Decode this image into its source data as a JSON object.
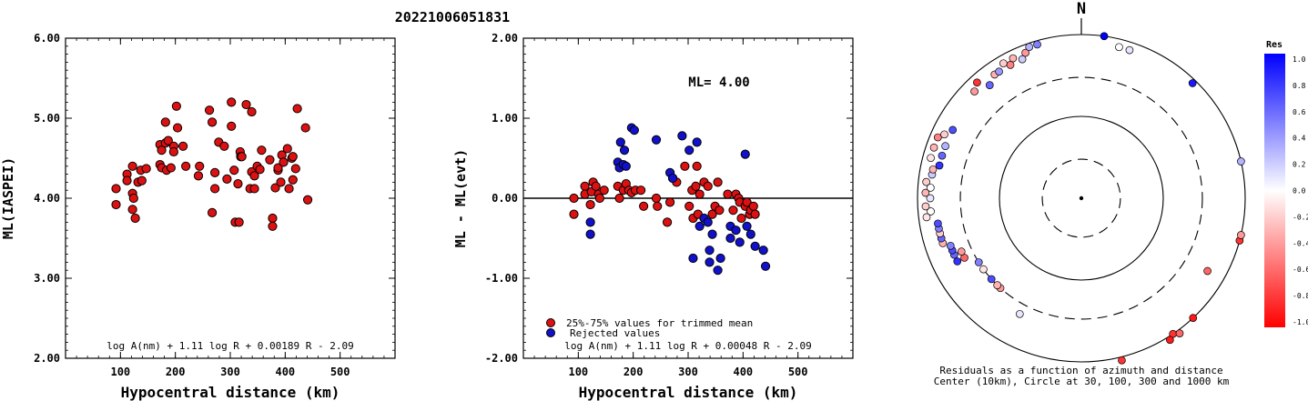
{
  "title": "20221006051831",
  "chart_data": [
    {
      "type": "scatter",
      "ylabel": "ML(IASPEI)",
      "xlabel": "Hypocentral distance (km)",
      "xlim": [
        0,
        600
      ],
      "ylim": [
        2.0,
        6.0
      ],
      "xticks": [
        "100",
        "200",
        "300",
        "400",
        "500"
      ],
      "yticks": [
        "2.00",
        "3.00",
        "4.00",
        "5.00",
        "6.00"
      ],
      "formula": "log A(nm) + 1.11 log R + 0.00189 R - 2.09",
      "point_color": "#dd1111",
      "x": [
        92,
        92,
        112,
        112,
        122,
        122,
        122,
        124,
        127,
        132,
        137,
        139,
        147,
        172,
        172,
        175,
        175,
        182,
        182,
        184,
        187,
        192,
        197,
        197,
        202,
        204,
        214,
        219,
        242,
        244,
        262,
        267,
        267,
        272,
        272,
        279,
        289,
        294,
        302,
        302,
        307,
        309,
        314,
        316,
        318,
        319,
        321,
        329,
        336,
        339,
        339,
        344,
        344,
        349,
        354,
        357,
        372,
        377,
        377,
        382,
        387,
        387,
        392,
        394,
        397,
        404,
        407,
        412,
        414,
        414,
        419,
        422,
        437,
        441
      ],
      "y": [
        4.12,
        3.92,
        4.3,
        4.22,
        4.4,
        4.06,
        3.86,
        4.0,
        3.75,
        4.2,
        4.35,
        4.22,
        4.37,
        4.67,
        4.42,
        4.6,
        4.38,
        4.95,
        4.69,
        4.35,
        4.72,
        4.38,
        4.65,
        4.58,
        5.15,
        4.88,
        4.65,
        4.4,
        4.28,
        4.4,
        5.1,
        4.95,
        3.82,
        4.12,
        4.32,
        4.7,
        4.65,
        4.24,
        5.2,
        4.9,
        4.35,
        3.7,
        4.18,
        3.7,
        4.58,
        4.52,
        4.52,
        5.17,
        4.12,
        5.08,
        4.33,
        4.28,
        4.12,
        4.4,
        4.36,
        4.6,
        4.48,
        3.75,
        3.65,
        4.13,
        4.35,
        4.38,
        4.2,
        4.54,
        4.45,
        4.62,
        4.12,
        4.5,
        4.52,
        4.23,
        4.37,
        5.12,
        4.88,
        3.98
      ]
    },
    {
      "type": "scatter",
      "ylabel": "ML - ML(evt)",
      "xlabel": "Hypocentral distance (km)",
      "xlim": [
        0,
        600
      ],
      "ylim": [
        -2.0,
        2.0
      ],
      "xticks": [
        "100",
        "200",
        "300",
        "400",
        "500"
      ],
      "yticks": [
        "-2.00",
        "-1.00",
        "0.00",
        "1.00",
        "2.00"
      ],
      "zero_line": 0,
      "annotation": "ML= 4.00",
      "formula": "log A(nm) + 1.11 log R + 0.00048 R - 2.09",
      "legend": [
        {
          "label": "25%-75% values for trimmed mean",
          "color": "#dd1111"
        },
        {
          "label": "Rejected values",
          "color": "#1111cc"
        }
      ],
      "series": [
        {
          "name": "25%-75% values for trimmed mean",
          "color": "#dd1111",
          "x": [
            92,
            92,
            112,
            112,
            122,
            124,
            127,
            132,
            137,
            139,
            147,
            172,
            175,
            182,
            187,
            192,
            197,
            204,
            214,
            219,
            242,
            244,
            262,
            267,
            272,
            279,
            294,
            302,
            307,
            309,
            314,
            316,
            318,
            321,
            329,
            336,
            344,
            349,
            354,
            357,
            372,
            382,
            387,
            392,
            394,
            397,
            404,
            407,
            412,
            414,
            419,
            422
          ],
          "y": [
            0.0,
            -0.2,
            0.15,
            0.05,
            -0.08,
            0.08,
            0.2,
            0.15,
            0.05,
            0.0,
            0.1,
            0.15,
            0.0,
            0.1,
            0.18,
            0.1,
            0.07,
            0.1,
            0.1,
            -0.1,
            0.0,
            -0.1,
            -0.3,
            -0.05,
            0.25,
            0.2,
            0.4,
            -0.1,
            0.1,
            -0.25,
            0.15,
            0.4,
            -0.2,
            0.05,
            0.2,
            0.15,
            -0.2,
            -0.1,
            0.2,
            -0.15,
            0.05,
            -0.15,
            0.05,
            0.0,
            -0.05,
            -0.25,
            -0.1,
            -0.05,
            -0.2,
            -0.15,
            -0.1,
            -0.2
          ]
        },
        {
          "name": "Rejected values",
          "color": "#1111cc",
          "x": [
            122,
            122,
            172,
            175,
            177,
            182,
            184,
            187,
            197,
            202,
            242,
            267,
            272,
            289,
            302,
            309,
            316,
            321,
            329,
            336,
            339,
            339,
            344,
            354,
            359,
            377,
            377,
            387,
            394,
            404,
            407,
            414,
            422,
            437,
            441
          ],
          "y": [
            -0.3,
            -0.45,
            0.45,
            0.38,
            0.7,
            0.42,
            0.6,
            0.4,
            0.88,
            0.85,
            0.73,
            0.32,
            0.25,
            0.78,
            0.6,
            -0.75,
            0.7,
            -0.35,
            -0.25,
            -0.3,
            -0.65,
            -0.8,
            -0.45,
            -0.9,
            -0.75,
            -0.5,
            -0.35,
            -0.4,
            -0.55,
            0.55,
            -0.35,
            -0.45,
            -0.6,
            -0.65,
            -0.85
          ]
        }
      ]
    },
    {
      "type": "scatter",
      "subtype": "polar",
      "north_label": "N",
      "caption_lines": [
        "Residuals as a function of azimuth and distance",
        "Center (10km), Circle at 30, 100, 300 and 1000 km"
      ],
      "colorbar": {
        "title": "Res",
        "ticks": [
          "1.0",
          "0.8",
          "0.6",
          "0.4",
          "0.2",
          "0.0",
          "-0.2",
          "-0.4",
          "-0.6",
          "-0.8",
          "-1.0"
        ],
        "max_color": "#0000ff",
        "zero_color": "#ffffff",
        "min_color": "#ff0000"
      },
      "points": [
        {
          "azimuth_deg": 8,
          "distance_km": 1000,
          "res": 1.0
        },
        {
          "azimuth_deg": 14,
          "distance_km": 800,
          "res": 0.0
        },
        {
          "azimuth_deg": 18,
          "distance_km": 800,
          "res": 0.1
        },
        {
          "azimuth_deg": 44,
          "distance_km": 900,
          "res": 0.9
        },
        {
          "azimuth_deg": 77,
          "distance_km": 1000,
          "res": 0.3
        },
        {
          "azimuth_deg": 105,
          "distance_km": 1000,
          "res": -0.8
        },
        {
          "azimuth_deg": 103,
          "distance_km": 1000,
          "res": -0.4
        },
        {
          "azimuth_deg": 120,
          "distance_km": 600,
          "res": -0.6
        },
        {
          "azimuth_deg": 137,
          "distance_km": 1000,
          "res": -0.9
        },
        {
          "azimuth_deg": 146,
          "distance_km": 1000,
          "res": -0.8
        },
        {
          "azimuth_deg": 148,
          "distance_km": 1100,
          "res": -0.9
        },
        {
          "azimuth_deg": 144,
          "distance_km": 1100,
          "res": -0.6
        },
        {
          "azimuth_deg": 166,
          "distance_km": 1100,
          "res": -0.8
        },
        {
          "azimuth_deg": 208,
          "distance_km": 400,
          "res": 0.1
        },
        {
          "azimuth_deg": 222,
          "distance_km": 300,
          "res": -0.4
        },
        {
          "azimuth_deg": 224,
          "distance_km": 300,
          "res": -0.3
        },
        {
          "azimuth_deg": 228,
          "distance_km": 300,
          "res": 0.7
        },
        {
          "azimuth_deg": 234,
          "distance_km": 300,
          "res": -0.1
        },
        {
          "azimuth_deg": 238,
          "distance_km": 300,
          "res": 0.5
        },
        {
          "azimuth_deg": 243,
          "distance_km": 400,
          "res": -0.6
        },
        {
          "azimuth_deg": 246,
          "distance_km": 400,
          "res": -0.4
        },
        {
          "azimuth_deg": 243,
          "distance_km": 500,
          "res": 0.8
        },
        {
          "azimuth_deg": 246,
          "distance_km": 500,
          "res": 0.6
        },
        {
          "azimuth_deg": 248,
          "distance_km": 500,
          "res": 0.7
        },
        {
          "azimuth_deg": 250,
          "distance_km": 500,
          "res": 0.5
        },
        {
          "azimuth_deg": 252,
          "distance_km": 600,
          "res": -0.3
        },
        {
          "azimuth_deg": 254,
          "distance_km": 600,
          "res": 0.6
        },
        {
          "azimuth_deg": 256,
          "distance_km": 600,
          "res": -0.2
        },
        {
          "azimuth_deg": 258,
          "distance_km": 600,
          "res": 0.5
        },
        {
          "azimuth_deg": 260,
          "distance_km": 600,
          "res": 0.7
        },
        {
          "azimuth_deg": 263,
          "distance_km": 800,
          "res": -0.1
        },
        {
          "azimuth_deg": 265,
          "distance_km": 700,
          "res": 0.0
        },
        {
          "azimuth_deg": 267,
          "distance_km": 800,
          "res": -0.2
        },
        {
          "azimuth_deg": 270,
          "distance_km": 700,
          "res": 0.1
        },
        {
          "azimuth_deg": 272,
          "distance_km": 800,
          "res": -0.3
        },
        {
          "azimuth_deg": 274,
          "distance_km": 700,
          "res": 0.0
        },
        {
          "azimuth_deg": 276,
          "distance_km": 800,
          "res": -0.2
        },
        {
          "azimuth_deg": 279,
          "distance_km": 700,
          "res": 0.2
        },
        {
          "azimuth_deg": 281,
          "distance_km": 700,
          "res": -0.3
        },
        {
          "azimuth_deg": 283,
          "distance_km": 600,
          "res": 0.8
        },
        {
          "azimuth_deg": 285,
          "distance_km": 800,
          "res": -0.1
        },
        {
          "azimuth_deg": 287,
          "distance_km": 600,
          "res": 0.6
        },
        {
          "azimuth_deg": 289,
          "distance_km": 800,
          "res": -0.3
        },
        {
          "azimuth_deg": 291,
          "distance_km": 600,
          "res": 0.3
        },
        {
          "azimuth_deg": 293,
          "distance_km": 800,
          "res": -0.5
        },
        {
          "azimuth_deg": 295,
          "distance_km": 700,
          "res": -0.2
        },
        {
          "azimuth_deg": 298,
          "distance_km": 600,
          "res": 0.7
        },
        {
          "azimuth_deg": 315,
          "distance_km": 700,
          "res": -0.4
        },
        {
          "azimuth_deg": 318,
          "distance_km": 800,
          "res": -0.8
        },
        {
          "azimuth_deg": 321,
          "distance_km": 600,
          "res": 0.6
        },
        {
          "azimuth_deg": 325,
          "distance_km": 700,
          "res": -0.3
        },
        {
          "azimuth_deg": 327,
          "distance_km": 700,
          "res": 0.4
        },
        {
          "azimuth_deg": 330,
          "distance_km": 800,
          "res": -0.2
        },
        {
          "azimuth_deg": 332,
          "distance_km": 700,
          "res": -0.5
        },
        {
          "azimuth_deg": 334,
          "distance_km": 800,
          "res": -0.3
        },
        {
          "azimuth_deg": 337,
          "distance_km": 700,
          "res": 0.2
        },
        {
          "azimuth_deg": 339,
          "distance_km": 800,
          "res": -0.4
        },
        {
          "azimuth_deg": 341,
          "distance_km": 900,
          "res": 0.3
        },
        {
          "azimuth_deg": 344,
          "distance_km": 900,
          "res": 0.5
        }
      ]
    }
  ]
}
